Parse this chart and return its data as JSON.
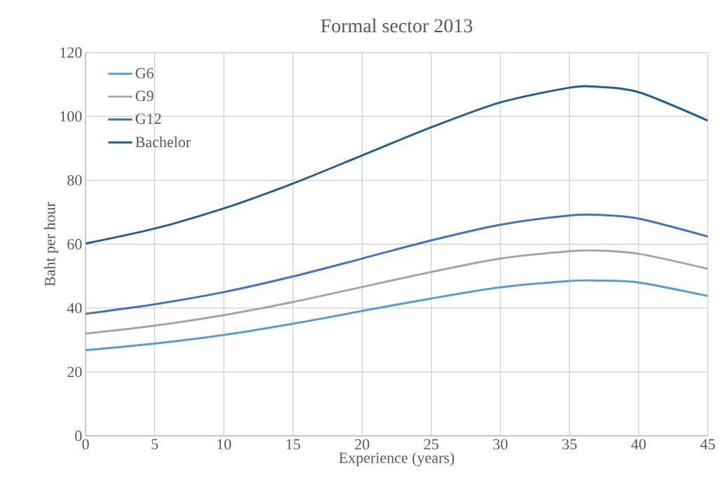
{
  "chart_data": {
    "type": "line",
    "title": "Formal sector 2013",
    "xlabel": "Experience (years)",
    "ylabel": "Baht per hour",
    "x": [
      0,
      5,
      10,
      15,
      20,
      25,
      30,
      35,
      37,
      40,
      45
    ],
    "series": [
      {
        "name": "G6",
        "color": "#5b9bd5",
        "values": [
          26.8,
          28.9,
          31.6,
          35.1,
          39.1,
          43.0,
          46.5,
          48.5,
          48.6,
          48.0,
          43.8
        ]
      },
      {
        "name": "G9",
        "color": "#a5a5a5",
        "values": [
          32.0,
          34.5,
          37.8,
          41.9,
          46.6,
          51.3,
          55.5,
          57.8,
          58.0,
          57.0,
          52.3
        ]
      },
      {
        "name": "G12",
        "color": "#4472c4",
        "values": [
          38.2,
          41.2,
          45.0,
          49.9,
          55.5,
          61.2,
          66.1,
          69.0,
          69.2,
          68.0,
          62.4
        ]
      },
      {
        "name": "Bachelor",
        "color": "#255e91",
        "values": [
          60.2,
          64.9,
          71.2,
          79.0,
          87.8,
          96.6,
          104.4,
          109.0,
          109.3,
          107.6,
          98.7
        ]
      }
    ],
    "xlim": [
      0,
      45
    ],
    "xticks": [
      0,
      5,
      10,
      15,
      20,
      25,
      30,
      35,
      40,
      45
    ],
    "ylim": [
      0,
      120
    ],
    "yticks": [
      0,
      20,
      40,
      60,
      80,
      100,
      120
    ],
    "grid": true,
    "legend": "top left",
    "marker": "none",
    "line_style": "solid"
  }
}
